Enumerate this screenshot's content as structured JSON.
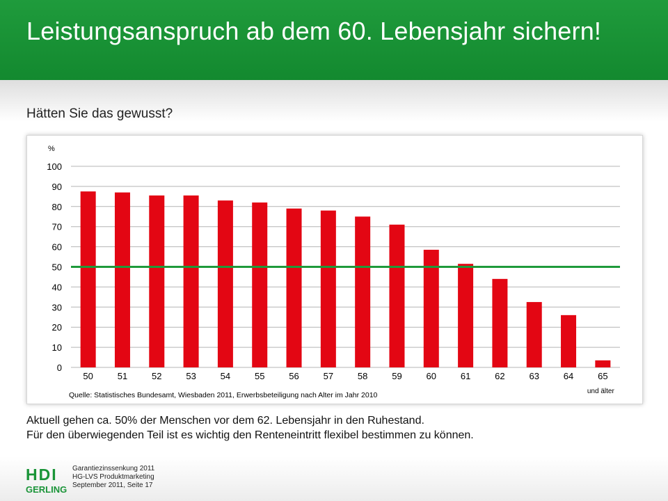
{
  "slide": {
    "title": "Leistungsanspruch ab dem 60. Lebensjahr sichern!",
    "subtitle": "Hätten Sie das gewusst?"
  },
  "chart_data": {
    "type": "bar",
    "unit_label": "%",
    "categories": [
      "50",
      "51",
      "52",
      "53",
      "54",
      "55",
      "56",
      "57",
      "58",
      "59",
      "60",
      "61",
      "62",
      "63",
      "64",
      "65"
    ],
    "last_category_sublabel": "und älter",
    "series": [
      {
        "values": [
          87.5,
          87,
          85.5,
          85.5,
          83,
          82,
          79,
          78,
          75,
          71,
          58.5,
          51.5,
          44,
          32.5,
          26,
          3.5
        ]
      }
    ],
    "reference_line": {
      "value": 50
    },
    "ylim": [
      0,
      100
    ],
    "yticks": [
      0,
      10,
      20,
      30,
      40,
      50,
      60,
      70,
      80,
      90,
      100
    ],
    "grid": true,
    "source": "Quelle: Statistisches Bundesamt, Wiesbaden 2011, Erwerbsbeteiligung nach Alter im Jahr 2010",
    "colors": {
      "bar": "#e30613",
      "reference_line": "#1e9a3a",
      "grid": "#b4b4b4"
    }
  },
  "body": {
    "line1": "Aktuell gehen ca. 50% der Menschen vor dem 62. Lebensjahr in den Ruhestand.",
    "line2": "Für den überwiegenden Teil ist es wichtig den Renteneintritt flexibel bestimmen zu können."
  },
  "logo": {
    "top": "HDI",
    "bottom": "GERLING"
  },
  "footer": {
    "line1": "Garantiezinssenkung 2011",
    "line2": "HG-LVS Produktmarketing",
    "line3": "September 2011, Seite 17"
  },
  "colors": {
    "header_green": "#1a9438",
    "logo_green": "#1a9438"
  }
}
